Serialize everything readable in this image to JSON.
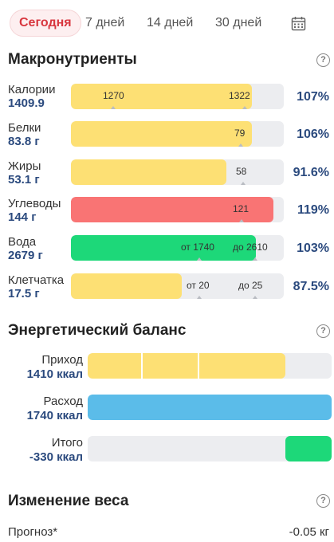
{
  "tabs": [
    {
      "label": "Сегодня"
    },
    {
      "label": "7 дней"
    },
    {
      "label": "14 дней"
    },
    {
      "label": "30 дней"
    }
  ],
  "macros": {
    "title": "Макронутриенты",
    "help": "?",
    "rows": [
      {
        "label": "Калории",
        "value": "1409.9",
        "pct": "107%",
        "fill_pct": 85,
        "color": "#fde074",
        "texts": [
          "1270",
          "1322"
        ]
      },
      {
        "label": "Белки",
        "value": "83.8 г",
        "pct": "106%",
        "fill_pct": 85,
        "color": "#fde074",
        "texts": [
          "79"
        ]
      },
      {
        "label": "Жиры",
        "value": "53.1 г",
        "pct": "91.6%",
        "fill_pct": 73,
        "color": "#fde074",
        "texts": [
          "58"
        ]
      },
      {
        "label": "Углеводы",
        "value": "144 г",
        "pct": "119%",
        "fill_pct": 95,
        "color": "#f97474",
        "texts": [
          "121"
        ]
      },
      {
        "label": "Вода",
        "value": "2679 г",
        "pct": "103%",
        "fill_pct": 87,
        "color": "#1dd879",
        "texts": [
          "от 1740",
          "до 2610"
        ]
      },
      {
        "label": "Клетчатка",
        "value": "17.5 г",
        "pct": "87.5%",
        "fill_pct": 52,
        "color": "#fde074",
        "texts": [
          "от 20",
          "до 25"
        ]
      }
    ]
  },
  "energy": {
    "title": "Энергетический баланс",
    "help": "?",
    "rows": [
      {
        "label": "Приход",
        "value": "1410 ккал",
        "fill_pct": 81,
        "color": "#fde074"
      },
      {
        "label": "Расход",
        "value": "1740 ккал",
        "fill_pct": 100,
        "color": "#5bbce9"
      },
      {
        "label": "Итого",
        "value": "-330 ккал",
        "fill_pct": 19,
        "color": "#1dd879"
      }
    ]
  },
  "weight": {
    "title": "Изменение веса",
    "help": "?",
    "forecast_label": "Прогноз*",
    "forecast_value": "-0.05 кг"
  }
}
